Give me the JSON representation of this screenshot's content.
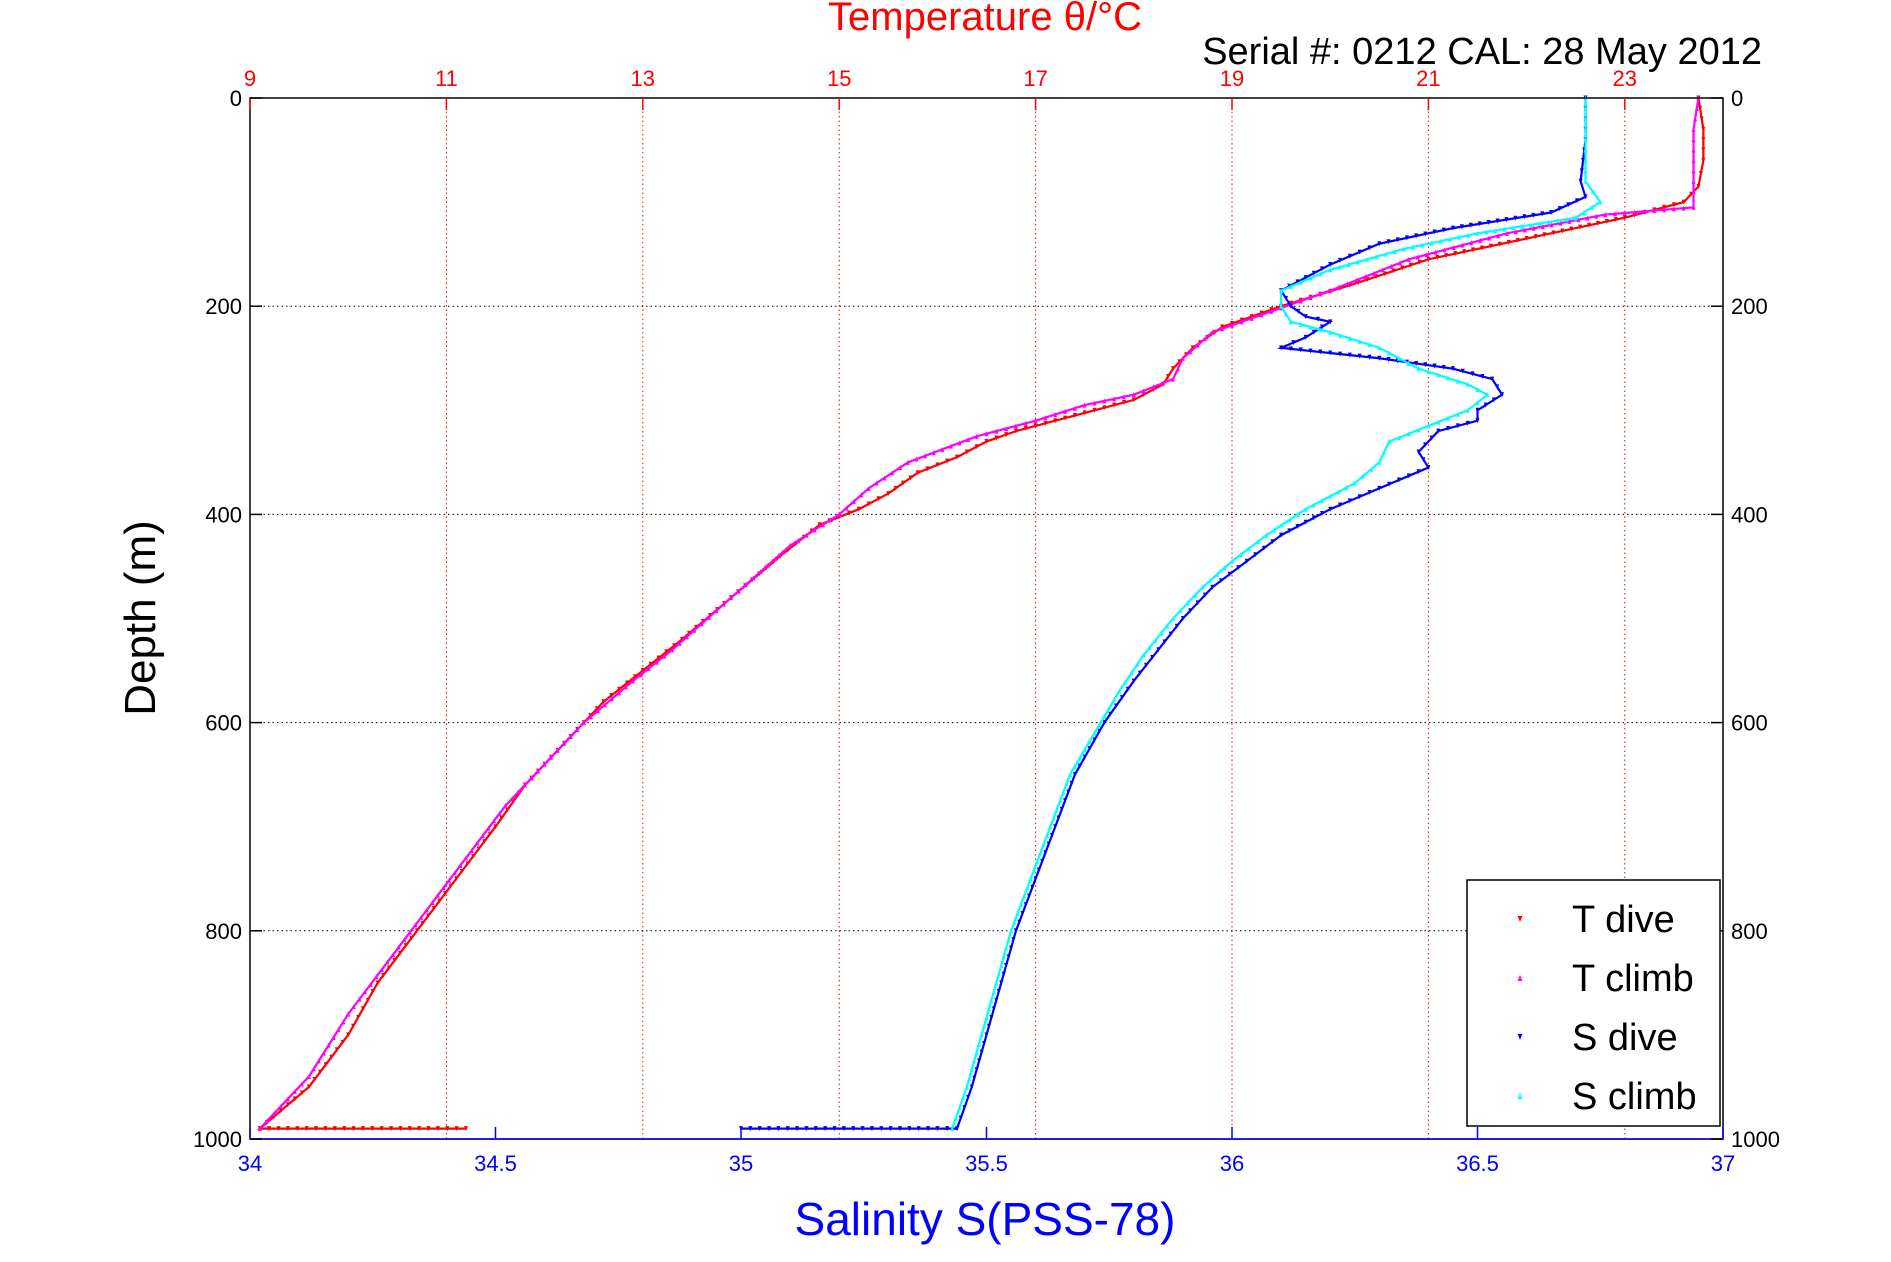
{
  "chart_data": {
    "type": "scatter",
    "title_top": "Temperature θ/°C",
    "serial_text": "Serial #: 0212  CAL: 28 May 2012",
    "xlabel_bottom": "Salinity S(PSS-78)",
    "ylabel": "Depth (m)",
    "temperature_axis": {
      "range": [
        9,
        24
      ],
      "ticks": [
        "9",
        "11",
        "13",
        "15",
        "17",
        "19",
        "21",
        "23"
      ],
      "tick_values": [
        9,
        11,
        13,
        15,
        17,
        19,
        21,
        23
      ],
      "color": "#ff0000"
    },
    "salinity_axis": {
      "range": [
        34,
        37
      ],
      "ticks": [
        "34",
        "34.5",
        "35",
        "35.5",
        "36",
        "36.5",
        "37"
      ],
      "tick_values": [
        34,
        34.5,
        35,
        35.5,
        36,
        36.5,
        37
      ],
      "color": "#0000ff"
    },
    "depth_axis": {
      "range": [
        0,
        1000
      ],
      "reversed": true,
      "ticks": [
        "0",
        "200",
        "400",
        "600",
        "800",
        "1000"
      ],
      "tick_values": [
        0,
        200,
        400,
        600,
        800,
        1000
      ]
    },
    "grid": {
      "temperature_vertical": true,
      "depth_horizontal": true
    },
    "legend": {
      "placement": "bottom-right",
      "entries": [
        {
          "label": "T dive",
          "color": "#ff0000",
          "marker": "triangle-down"
        },
        {
          "label": "T climb",
          "color": "#ff00ff",
          "marker": "triangle-up"
        },
        {
          "label": "S dive",
          "color": "#0000ff",
          "marker": "triangle-down"
        },
        {
          "label": "S climb",
          "color": "#00ffff",
          "marker": "triangle-up"
        }
      ]
    },
    "series": [
      {
        "name": "T dive",
        "axis": "temperature",
        "color": "#ff0000",
        "points": [
          [
            23.75,
            0
          ],
          [
            23.8,
            30
          ],
          [
            23.8,
            60
          ],
          [
            23.75,
            85
          ],
          [
            23.6,
            100
          ],
          [
            23.0,
            115
          ],
          [
            22.0,
            135
          ],
          [
            21.0,
            155
          ],
          [
            20.2,
            180
          ],
          [
            19.5,
            200
          ],
          [
            18.9,
            220
          ],
          [
            18.6,
            240
          ],
          [
            18.4,
            260
          ],
          [
            18.3,
            275
          ],
          [
            18.0,
            290
          ],
          [
            17.6,
            300
          ],
          [
            17.2,
            310
          ],
          [
            16.8,
            320
          ],
          [
            16.5,
            330
          ],
          [
            16.2,
            345
          ],
          [
            15.8,
            360
          ],
          [
            15.5,
            380
          ],
          [
            15.2,
            395
          ],
          [
            14.8,
            410
          ],
          [
            14.4,
            440
          ],
          [
            13.9,
            480
          ],
          [
            13.4,
            520
          ],
          [
            13.0,
            550
          ],
          [
            12.6,
            580
          ],
          [
            12.2,
            620
          ],
          [
            11.8,
            660
          ],
          [
            11.5,
            700
          ],
          [
            11.1,
            750
          ],
          [
            10.7,
            800
          ],
          [
            10.3,
            850
          ],
          [
            10.0,
            900
          ],
          [
            9.6,
            950
          ],
          [
            9.1,
            990
          ],
          [
            11.2,
            990
          ]
        ]
      },
      {
        "name": "T climb",
        "axis": "temperature",
        "color": "#ff00ff",
        "points": [
          [
            23.75,
            0
          ],
          [
            23.7,
            30
          ],
          [
            23.7,
            60
          ],
          [
            23.7,
            90
          ],
          [
            23.7,
            105
          ],
          [
            22.8,
            112
          ],
          [
            21.8,
            130
          ],
          [
            20.8,
            155
          ],
          [
            20.0,
            185
          ],
          [
            19.4,
            205
          ],
          [
            18.8,
            225
          ],
          [
            18.5,
            250
          ],
          [
            18.4,
            270
          ],
          [
            18.0,
            285
          ],
          [
            17.5,
            295
          ],
          [
            17.0,
            310
          ],
          [
            16.4,
            325
          ],
          [
            15.7,
            350
          ],
          [
            15.3,
            375
          ],
          [
            15.0,
            400
          ],
          [
            14.5,
            430
          ],
          [
            13.9,
            480
          ],
          [
            13.3,
            530
          ],
          [
            12.9,
            560
          ],
          [
            12.4,
            600
          ],
          [
            12.0,
            640
          ],
          [
            11.6,
            680
          ],
          [
            11.2,
            730
          ],
          [
            10.8,
            780
          ],
          [
            10.4,
            830
          ],
          [
            10.0,
            880
          ],
          [
            9.6,
            940
          ],
          [
            9.1,
            990
          ]
        ]
      },
      {
        "name": "S dive",
        "axis": "salinity",
        "color": "#0000ff",
        "points": [
          [
            36.72,
            0
          ],
          [
            36.72,
            40
          ],
          [
            36.71,
            80
          ],
          [
            36.72,
            95
          ],
          [
            36.65,
            110
          ],
          [
            36.45,
            125
          ],
          [
            36.3,
            140
          ],
          [
            36.2,
            160
          ],
          [
            36.1,
            185
          ],
          [
            36.12,
            200
          ],
          [
            36.15,
            210
          ],
          [
            36.2,
            215
          ],
          [
            36.15,
            230
          ],
          [
            36.1,
            240
          ],
          [
            36.3,
            250
          ],
          [
            36.45,
            260
          ],
          [
            36.53,
            270
          ],
          [
            36.55,
            285
          ],
          [
            36.5,
            300
          ],
          [
            36.5,
            310
          ],
          [
            36.42,
            320
          ],
          [
            36.38,
            340
          ],
          [
            36.4,
            355
          ],
          [
            36.3,
            375
          ],
          [
            36.2,
            395
          ],
          [
            36.1,
            420
          ],
          [
            36.03,
            445
          ],
          [
            35.96,
            470
          ],
          [
            35.9,
            500
          ],
          [
            35.85,
            530
          ],
          [
            35.8,
            560
          ],
          [
            35.74,
            600
          ],
          [
            35.68,
            650
          ],
          [
            35.64,
            700
          ],
          [
            35.6,
            750
          ],
          [
            35.56,
            800
          ],
          [
            35.53,
            850
          ],
          [
            35.5,
            900
          ],
          [
            35.47,
            950
          ],
          [
            35.44,
            990
          ],
          [
            35.4,
            990
          ],
          [
            35.0,
            990
          ]
        ]
      },
      {
        "name": "S climb",
        "axis": "salinity",
        "color": "#00ffff",
        "points": [
          [
            36.72,
            0
          ],
          [
            36.72,
            40
          ],
          [
            36.72,
            80
          ],
          [
            36.75,
            100
          ],
          [
            36.7,
            115
          ],
          [
            36.5,
            130
          ],
          [
            36.35,
            145
          ],
          [
            36.2,
            165
          ],
          [
            36.1,
            185
          ],
          [
            36.1,
            200
          ],
          [
            36.12,
            215
          ],
          [
            36.2,
            225
          ],
          [
            36.3,
            240
          ],
          [
            36.38,
            260
          ],
          [
            36.48,
            275
          ],
          [
            36.52,
            285
          ],
          [
            36.48,
            300
          ],
          [
            36.4,
            315
          ],
          [
            36.32,
            330
          ],
          [
            36.3,
            350
          ],
          [
            36.25,
            370
          ],
          [
            36.15,
            395
          ],
          [
            36.07,
            420
          ],
          [
            36.0,
            445
          ],
          [
            35.94,
            470
          ],
          [
            35.88,
            500
          ],
          [
            35.82,
            535
          ],
          [
            35.77,
            570
          ],
          [
            35.72,
            610
          ],
          [
            35.67,
            650
          ],
          [
            35.63,
            700
          ],
          [
            35.59,
            750
          ],
          [
            35.55,
            800
          ],
          [
            35.52,
            850
          ],
          [
            35.49,
            900
          ],
          [
            35.46,
            950
          ],
          [
            35.43,
            990
          ]
        ]
      }
    ]
  }
}
